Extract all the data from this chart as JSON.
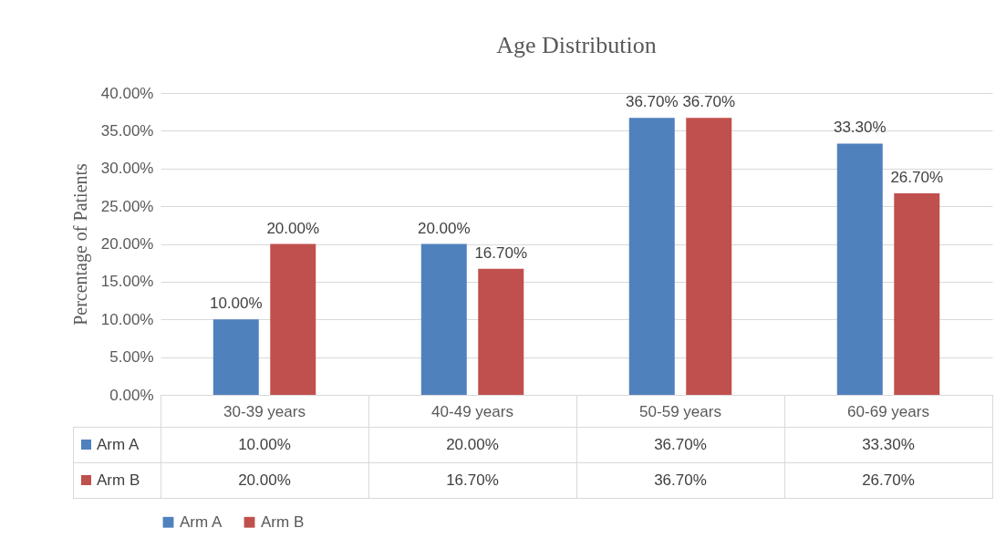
{
  "chart_data": {
    "type": "bar",
    "title": "Age Distribution",
    "ylabel": "Percentage of Patients",
    "categories": [
      "30-39 years",
      "40-49 years",
      "50-59 years",
      "60-69 years"
    ],
    "series": [
      {
        "name": "Arm A",
        "color": "#4f81bd",
        "values": [
          10,
          20,
          36.7,
          33.3
        ],
        "value_labels": [
          "10.00%",
          "20.00%",
          "36.70%",
          "33.30%"
        ]
      },
      {
        "name": "Arm B",
        "color": "#c0504d",
        "values": [
          20,
          16.7,
          36.7,
          26.7
        ],
        "value_labels": [
          "20.00%",
          "16.70%",
          "36.70%",
          "26.70%"
        ]
      }
    ],
    "ylim": [
      0,
      40
    ],
    "yticks": [
      {
        "value": 0,
        "label": "0.00%"
      },
      {
        "value": 5,
        "label": "5.00%"
      },
      {
        "value": 10,
        "label": "10.00%"
      },
      {
        "value": 15,
        "label": "15.00%"
      },
      {
        "value": 20,
        "label": "20.00%"
      },
      {
        "value": 25,
        "label": "25.00%"
      },
      {
        "value": 30,
        "label": "30.00%"
      },
      {
        "value": 35,
        "label": "35.00%"
      },
      {
        "value": 40,
        "label": "40.00%"
      }
    ],
    "grid": "y",
    "legend": "bottom"
  }
}
